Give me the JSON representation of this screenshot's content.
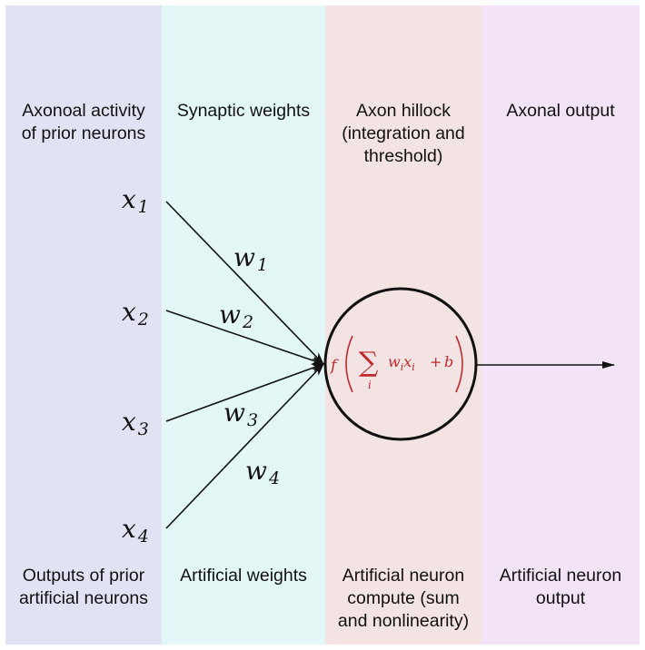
{
  "columns": [
    {
      "top": "Axonoal activity\nof prior neurons",
      "bottom": "Outputs of prior\nartificial neurons",
      "color": "#e2e2f5"
    },
    {
      "top": "Synaptic weights",
      "bottom": "Artificial weights",
      "color": "#e3f7f6"
    },
    {
      "top": "Axon hillock\n(integration and\nthreshold)",
      "bottom": "Artificial neuron\ncompute (sum\nand nonlinearity)",
      "color": "#f3e3e2"
    },
    {
      "top": "Axonal output",
      "bottom": "Artificial neuron\noutput",
      "color": "#f2e3f6"
    }
  ],
  "inputs": [
    {
      "symbol": "x",
      "index": "1"
    },
    {
      "symbol": "x",
      "index": "2"
    },
    {
      "symbol": "x",
      "index": "3"
    },
    {
      "symbol": "x",
      "index": "4"
    }
  ],
  "weights": [
    {
      "symbol": "w",
      "index": "1"
    },
    {
      "symbol": "w",
      "index": "2"
    },
    {
      "symbol": "w",
      "index": "3"
    },
    {
      "symbol": "w",
      "index": "4"
    }
  ],
  "neuron": {
    "f": "f",
    "sum": "∑",
    "sum_index": "i",
    "term_w": "w",
    "term_x": "x",
    "term_sub": "i",
    "plus": "+",
    "bias": "b",
    "formula_color": "#c0282d"
  }
}
